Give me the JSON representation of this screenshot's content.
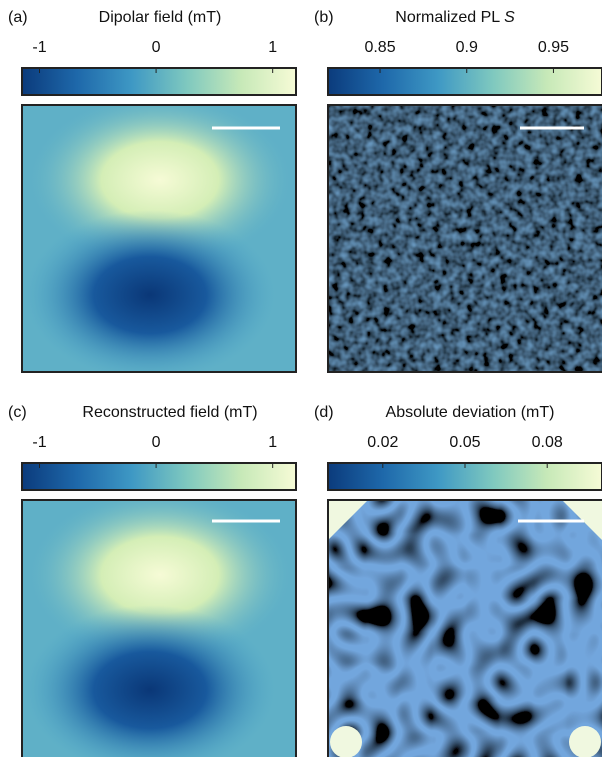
{
  "chart_data": [
    {
      "type": "heatmap",
      "panel_label": "(a)",
      "title": "Dipolar field (mT)",
      "clim": [
        -1.15,
        1.2
      ],
      "cticks": [
        -1,
        0,
        1
      ],
      "colormap": [
        "#0b3b7c",
        "#1e68aa",
        "#3e98c4",
        "#7ec8bf",
        "#c7e9b8",
        "#f6fbd6"
      ]
    },
    {
      "type": "heatmap",
      "panel_label": "(b)",
      "title": "Normalized PL",
      "title_symbol": "S",
      "clim": [
        0.82,
        0.978
      ],
      "cticks": [
        0.85,
        0.9,
        0.95
      ],
      "colormap": [
        "#0b3b7c",
        "#1e68aa",
        "#3e98c4",
        "#7ec8bf",
        "#c7e9b8",
        "#f6fbd6"
      ]
    },
    {
      "type": "heatmap",
      "panel_label": "(c)",
      "title": "Reconstructed field (mT)",
      "clim": [
        -1.15,
        1.2
      ],
      "cticks": [
        -1,
        0,
        1
      ],
      "colormap": [
        "#0b3b7c",
        "#1e68aa",
        "#3e98c4",
        "#7ec8bf",
        "#c7e9b8",
        "#f6fbd6"
      ]
    },
    {
      "type": "heatmap",
      "panel_label": "(d)",
      "title": "Absolute deviation (mT)",
      "clim": [
        0,
        0.1
      ],
      "cticks": [
        0.02,
        0.05,
        0.08
      ],
      "colormap": [
        "#0b3b7c",
        "#1e68aa",
        "#3e98c4",
        "#7ec8bf",
        "#c7e9b8",
        "#f6fbd6"
      ]
    }
  ]
}
